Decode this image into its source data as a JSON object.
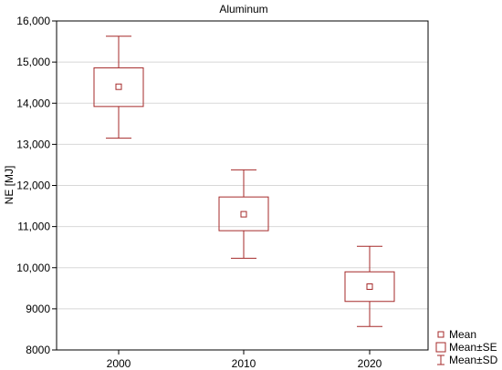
{
  "chart_data": {
    "type": "box",
    "title": "Aluminum",
    "xlabel": "",
    "ylabel": "NE [MJ]",
    "ylim": [
      8000,
      16000
    ],
    "y_ticks": [
      8000,
      9000,
      10000,
      11000,
      12000,
      13000,
      14000,
      15000,
      16000
    ],
    "y_tick_labels": [
      "8000",
      "9000",
      "10,000",
      "11,000",
      "12,000",
      "13,000",
      "14,000",
      "15,000",
      "16,000"
    ],
    "grid": true,
    "categories": [
      "2000",
      "2010",
      "2020"
    ],
    "mean": [
      14400,
      11300,
      9540
    ],
    "se": [
      [
        13920,
        14860
      ],
      [
        10900,
        11720
      ],
      [
        9180,
        9900
      ]
    ],
    "sd": [
      [
        13150,
        15630
      ],
      [
        10230,
        12380
      ],
      [
        8570,
        10520
      ]
    ],
    "legend_position": "bottom-right outside",
    "legend": [
      {
        "symbol": "mean",
        "label": "Mean"
      },
      {
        "symbol": "se",
        "label": "Mean±SE"
      },
      {
        "symbol": "sd",
        "label": "Mean±SD"
      }
    ],
    "colors": {
      "series": "#a52a2a",
      "grid": "#d8d8d8",
      "axis": "#000000"
    }
  }
}
